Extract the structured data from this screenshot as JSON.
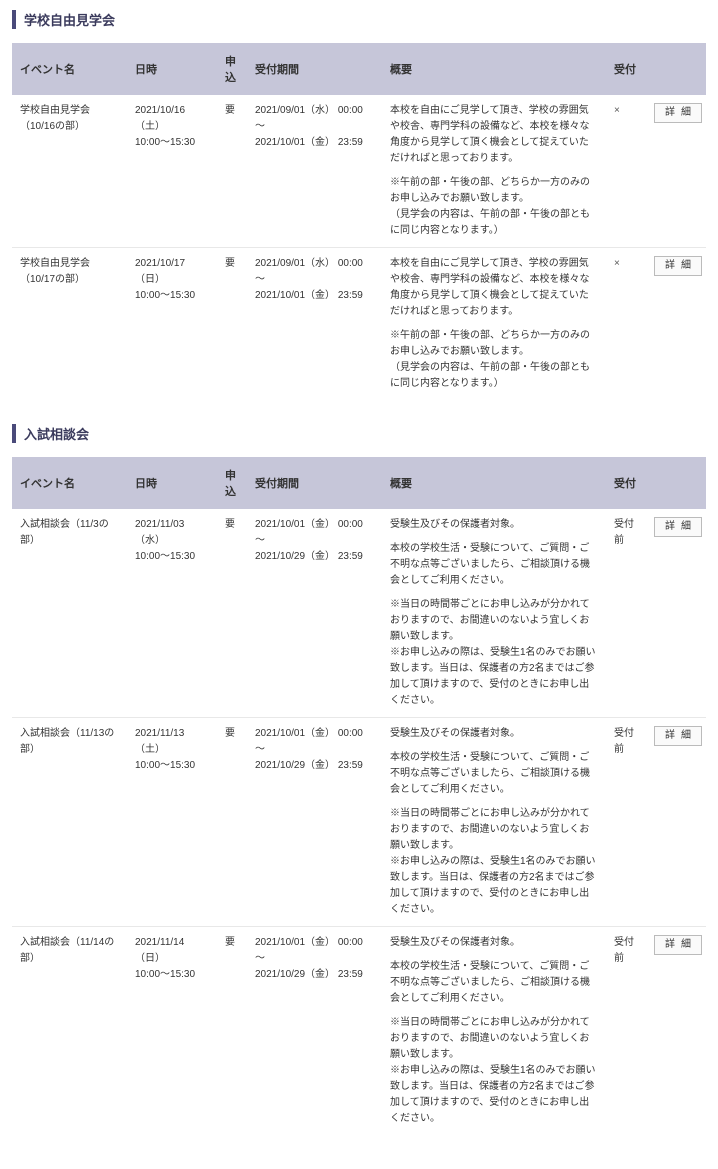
{
  "sections": [
    {
      "title": "学校自由見学会",
      "headers": [
        "イベント名",
        "日時",
        "申込",
        "受付期間",
        "概要",
        "受付",
        ""
      ],
      "rows": [
        {
          "name": "学校自由見学会（10/16の部）",
          "date": "2021/10/16（土）\n10:00～15:30",
          "app": "要",
          "period": "2021/09/01（水） 00:00\n～\n2021/10/01（金） 23:59",
          "summary1": "本校を自由にご見学して頂き、学校の雰囲気や校舎、専門学科の設備など、本校を様々な角度から見学して頂く機会として捉えていただければと思っております。",
          "summary2": "※午前の部・午後の部、どちらか一方のみのお申し込みでお願い致します。\n（見学会の内容は、午前の部・午後の部ともに同じ内容となります。）",
          "rec": "×",
          "btn": "詳細"
        },
        {
          "name": "学校自由見学会（10/17の部）",
          "date": "2021/10/17（日）\n10:00～15:30",
          "app": "要",
          "period": "2021/09/01（水） 00:00\n～\n2021/10/01（金） 23:59",
          "summary1": "本校を自由にご見学して頂き、学校の雰囲気や校舎、専門学科の設備など、本校を様々な角度から見学して頂く機会として捉えていただければと思っております。",
          "summary2": "※午前の部・午後の部、どちらか一方のみのお申し込みでお願い致します。\n（見学会の内容は、午前の部・午後の部ともに同じ内容となります。）",
          "rec": "×",
          "btn": "詳細"
        }
      ]
    },
    {
      "title": "入試相談会",
      "headers": [
        "イベント名",
        "日時",
        "申込",
        "受付期間",
        "概要",
        "受付",
        ""
      ],
      "rows": [
        {
          "name": "入試相談会（11/3の部）",
          "date": "2021/11/03（水）\n10:00～15:30",
          "app": "要",
          "period": "2021/10/01（金） 00:00\n～\n2021/10/29（金） 23:59",
          "summary1": "受験生及びその保護者対象。",
          "summary2": "本校の学校生活・受験について、ご質問・ご不明な点等ございましたら、ご相談頂ける機会としてご利用ください。",
          "summary3": "※当日の時間帯ごとにお申し込みが分かれておりますので、お間違いのないよう宜しくお願い致します。\n※お申し込みの際は、受験生1名のみでお願い致します。当日は、保護者の方2名まではご参加して頂けますので、受付のときにお申し出ください。",
          "rec": "受付前",
          "btn": "詳細"
        },
        {
          "name": "入試相談会（11/13の部）",
          "date": "2021/11/13（土）\n10:00～15:30",
          "app": "要",
          "period": "2021/10/01（金） 00:00\n～\n2021/10/29（金） 23:59",
          "summary1": "受験生及びその保護者対象。",
          "summary2": "本校の学校生活・受験について、ご質問・ご不明な点等ございましたら、ご相談頂ける機会としてご利用ください。",
          "summary3": "※当日の時間帯ごとにお申し込みが分かれておりますので、お間違いのないよう宜しくお願い致します。\n※お申し込みの際は、受験生1名のみでお願い致します。当日は、保護者の方2名まではご参加して頂けますので、受付のときにお申し出ください。",
          "rec": "受付前",
          "btn": "詳細"
        },
        {
          "name": "入試相談会（11/14の部）",
          "date": "2021/11/14（日）\n10:00～15:30",
          "app": "要",
          "period": "2021/10/01（金） 00:00\n～\n2021/10/29（金） 23:59",
          "summary1": "受験生及びその保護者対象。",
          "summary2": "本校の学校生活・受験について、ご質問・ご不明な点等ございましたら、ご相談頂ける機会としてご利用ください。",
          "summary3": "※当日の時間帯ごとにお申し込みが分かれておりますので、お間違いのないよう宜しくお願い致します。\n※お申し込みの際は、受験生1名のみでお願い致します。当日は、保護者の方2名まではご参加して頂けますので、受付のときにお申し出ください。",
          "rec": "受付前",
          "btn": "詳細"
        }
      ]
    }
  ]
}
